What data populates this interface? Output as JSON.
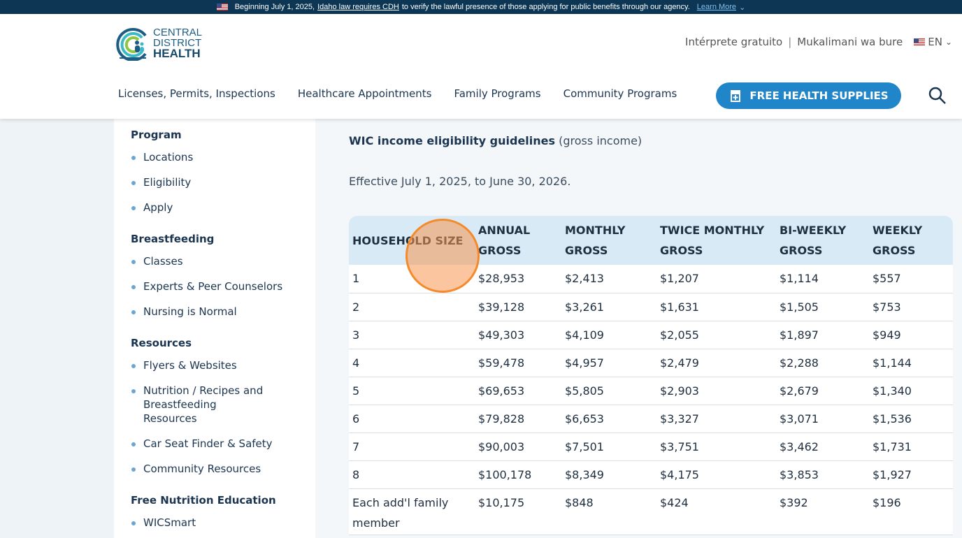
{
  "banner": {
    "prefix": "Beginning July 1, 2025,",
    "link": "Idaho law requires CDH",
    "suffix": "to verify the lawful presence of those applying for public benefits through our agency.",
    "learn_more": "Learn More"
  },
  "logo": {
    "line1": "CENTRAL",
    "line2": "DISTRICT",
    "line3": "HEALTH"
  },
  "util": {
    "interpreter_es": "Intérprete gratuito",
    "interpreter_sw": "Mukalimani wa bure",
    "language": "EN"
  },
  "nav": [
    "Licenses, Permits, Inspections",
    "Healthcare Appointments",
    "Family Programs",
    "Community Programs"
  ],
  "cta": "FREE HEALTH SUPPLIES",
  "sidebar": [
    {
      "heading": "Program",
      "items": [
        "Locations",
        "Eligibility",
        "Apply"
      ]
    },
    {
      "heading": "Breastfeeding",
      "items": [
        "Classes",
        "Experts & Peer Counselors",
        "Nursing is Normal"
      ]
    },
    {
      "heading": "Resources",
      "items": [
        "Flyers & Websites",
        "Nutrition / Recipes and Breastfeeding Resources",
        "Car Seat Finder & Safety",
        "Community Resources"
      ]
    },
    {
      "heading": "Free Nutrition Education",
      "items": [
        "WICSmart"
      ]
    }
  ],
  "main": {
    "title_bold": "WIC income eligibility guidelines",
    "title_rest": "(gross income)",
    "effective": "Effective July 1, 2025, to June 30, 2026."
  },
  "table": {
    "headers": [
      "HOUSEHOLD SIZE",
      "ANNUAL GROSS",
      "MONTHLY GROSS",
      "TWICE MONTHLY GROSS",
      "BI-WEEKLY GROSS",
      "WEEKLY GROSS"
    ],
    "rows": [
      [
        "1",
        "$28,953",
        "$2,413",
        "$1,207",
        "$1,114",
        "$557"
      ],
      [
        "2",
        "$39,128",
        "$3,261",
        "$1,631",
        "$1,505",
        "$753"
      ],
      [
        "3",
        "$49,303",
        "$4,109",
        "$2,055",
        "$1,897",
        "$949"
      ],
      [
        "4",
        "$59,478",
        "$4,957",
        "$2,479",
        "$2,288",
        "$1,144"
      ],
      [
        "5",
        "$69,653",
        "$5,805",
        "$2,903",
        "$2,679",
        "$1,340"
      ],
      [
        "6",
        "$79,828",
        "$6,653",
        "$3,327",
        "$3,071",
        "$1,536"
      ],
      [
        "7",
        "$90,003",
        "$7,501",
        "$3,751",
        "$3,462",
        "$1,731"
      ],
      [
        "8",
        "$100,178",
        "$8,349",
        "$4,175",
        "$3,853",
        "$1,927"
      ],
      [
        "Each add'l family member",
        "$10,175",
        "$848",
        "$424",
        "$392",
        "$196"
      ]
    ]
  },
  "colors": {
    "banner": "#0c3654",
    "accent": "#2185c9",
    "table_header": "#d7eaf5"
  }
}
